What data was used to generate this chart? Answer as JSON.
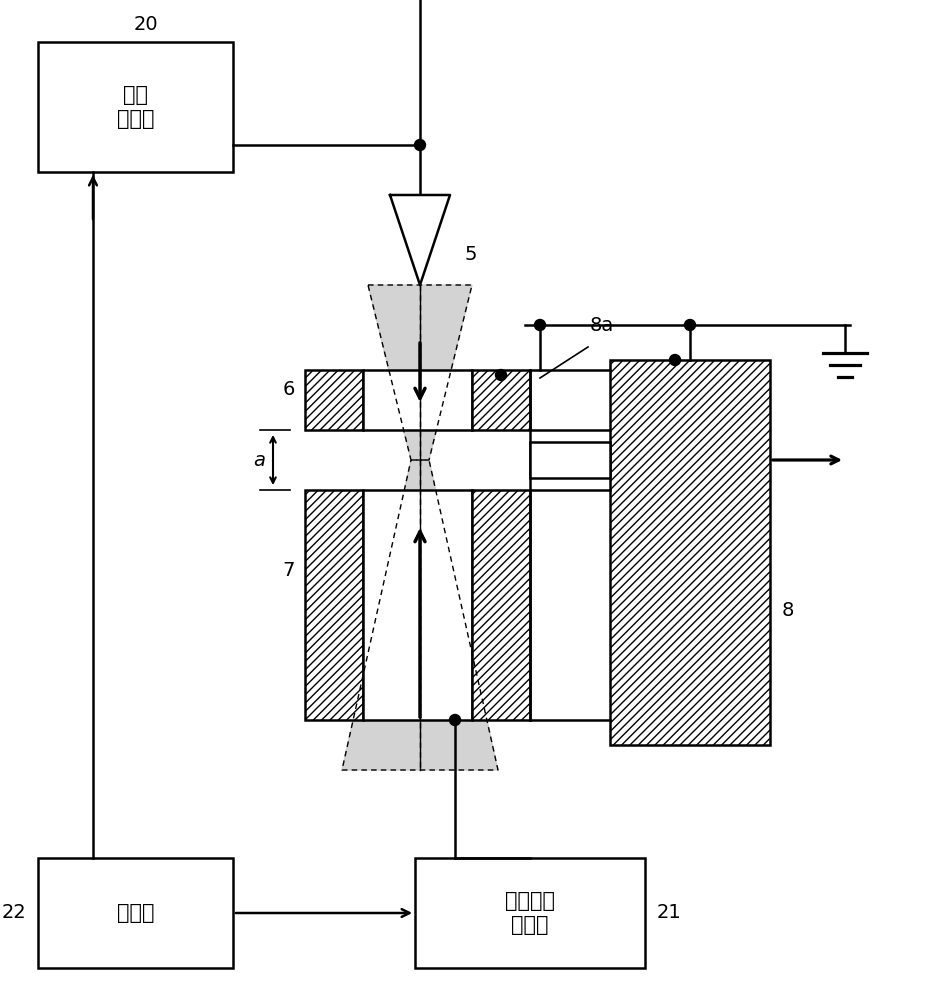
{
  "bg": "#ffffff",
  "lc": "#000000",
  "lw": 1.8,
  "box_nozzle_label": "喷嘴\n电源部",
  "box_control_label": "控制部",
  "box_reflect_label": "反射电极\n电源部",
  "num_20": "20",
  "num_21": "21",
  "num_22": "22",
  "num_5": "5",
  "num_6": "6",
  "num_7": "7",
  "num_8": "8",
  "num_8a": "8a",
  "label_a": "a",
  "font_size_label": 15,
  "font_size_num": 14
}
